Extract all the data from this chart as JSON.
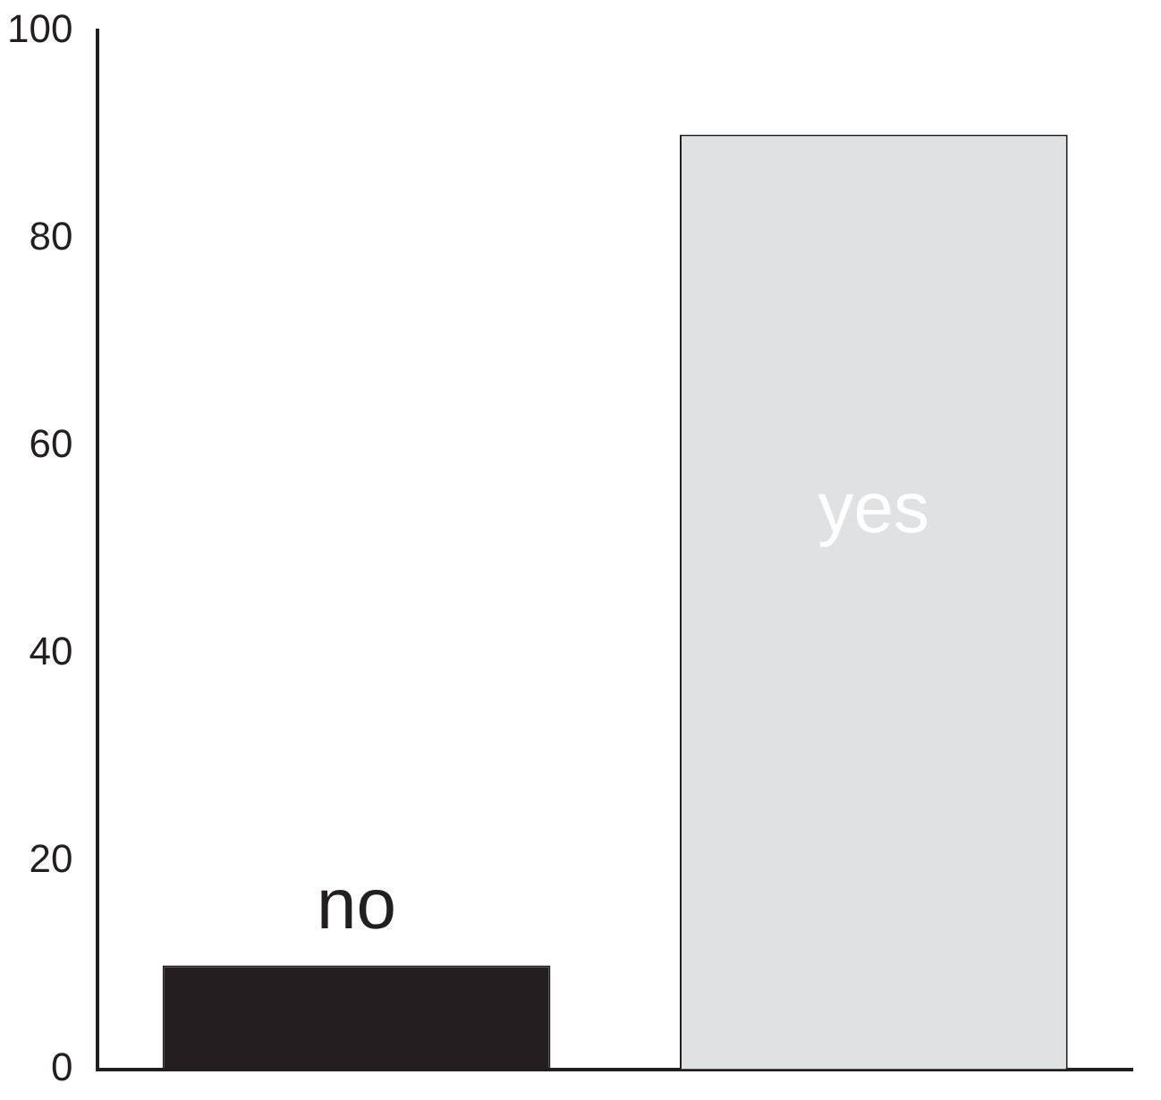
{
  "chart_data": {
    "type": "bar",
    "categories": [
      "no",
      "yes"
    ],
    "values": [
      10,
      90
    ],
    "colors": [
      "#231f20",
      "#e0e1e3"
    ],
    "ylim": [
      0,
      100
    ],
    "yticks": [
      0,
      20,
      40,
      60,
      80,
      100
    ],
    "grid": false,
    "legend": false,
    "tick_labels": "y"
  }
}
